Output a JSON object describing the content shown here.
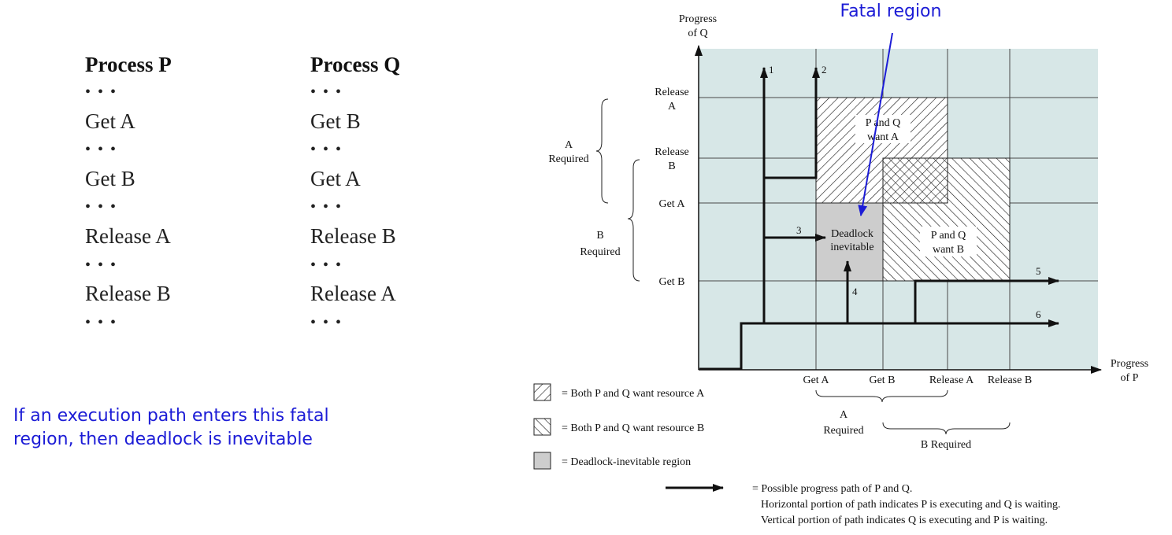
{
  "processes": {
    "p": {
      "title": "Process P",
      "lines": [
        "• • •",
        "Get A",
        "• • •",
        "Get B",
        "• • •",
        "Release A",
        "• • •",
        "Release B",
        "• • •"
      ]
    },
    "q": {
      "title": "Process Q",
      "lines": [
        "• • •",
        "Get B",
        "• • •",
        "Get A",
        "• • •",
        "Release B",
        "• • •",
        "Release A",
        "• • •"
      ]
    }
  },
  "note": "If an execution path enters this fatal\nregion, then deadlock is inevitable",
  "diagram": {
    "fatal_label": "Fatal region",
    "y_axis_title": [
      "Progress",
      "of Q"
    ],
    "x_axis_title": [
      "Progress",
      "of P"
    ],
    "y_ticks": {
      "release_a": [
        "Release",
        "A"
      ],
      "release_b": [
        "Release",
        "B"
      ],
      "get_a": "Get A",
      "get_b": "Get B"
    },
    "x_ticks": [
      "Get A",
      "Get B",
      "Release A",
      "Release B"
    ],
    "brace_labels": {
      "y_a": [
        "A",
        "Required"
      ],
      "y_b": [
        "B",
        "Required"
      ],
      "x_a": [
        "A",
        "Required"
      ],
      "x_b": "B Required"
    },
    "regions": {
      "both_a": [
        "P and Q",
        "want A"
      ],
      "both_b": [
        "P and Q",
        "want B"
      ],
      "deadlock": [
        "Deadlock",
        "inevitable"
      ]
    },
    "path_numbers": [
      "1",
      "2",
      "3",
      "4",
      "5",
      "6"
    ],
    "legend": {
      "hatch_a": "= Both P and Q want resource A",
      "hatch_b": "= Both P and Q want resource B",
      "gray": "= Deadlock-inevitable region",
      "arrow_lines": [
        "= Possible progress path of P and Q.",
        "Horizontal portion of path indicates P is executing and Q is waiting.",
        "Vertical portion of path indicates Q is executing and P is waiting."
      ]
    },
    "colors": {
      "plot_bg": "#d7e7e7",
      "grid": "#4a4a4a",
      "deadlock_fill": "#cdcdcd",
      "fatal_arrow": "#1c1cd6",
      "path": "#111111"
    }
  }
}
